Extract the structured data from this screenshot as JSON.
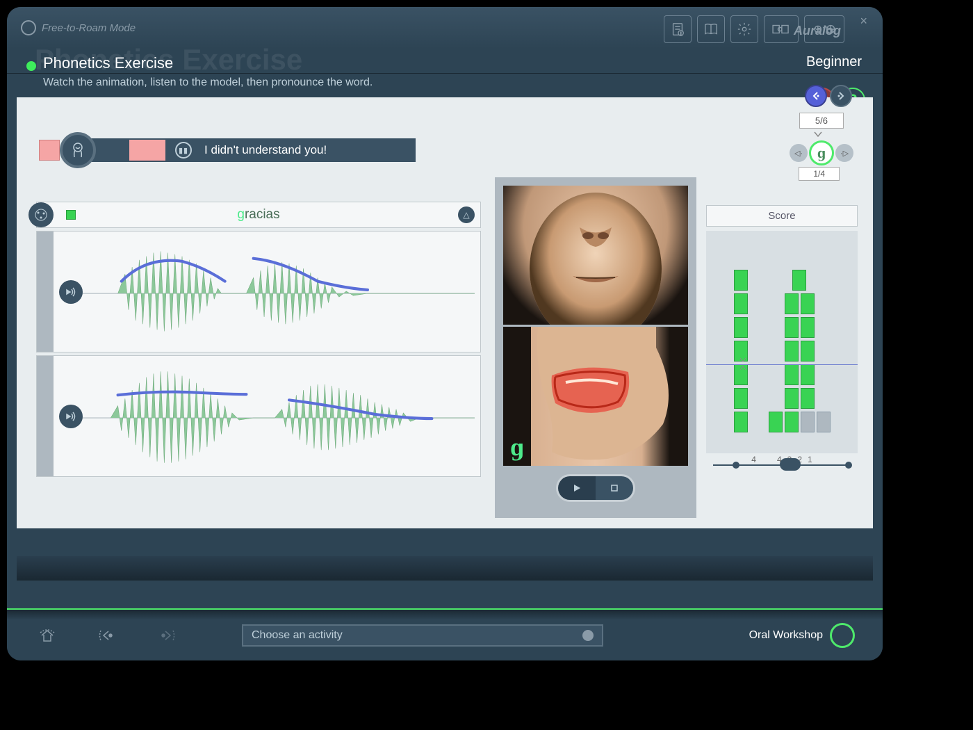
{
  "header": {
    "mode": "Free-to-Roam Mode",
    "brand": "Auralog"
  },
  "title": {
    "ghost": "Phonetics Exercise",
    "main": "Phonetics Exercise",
    "level": "Beginner",
    "instruction": "Watch the animation, listen to the model, then pronounce the word."
  },
  "nav": {
    "page_counter": "5/6",
    "sub_letter": "ɡ",
    "sub_counter": "1/4"
  },
  "feedback": {
    "text": "I didn't understand you!"
  },
  "word": {
    "highlight": "g",
    "rest": "racias",
    "full": "gracias"
  },
  "waveforms": {
    "model": {
      "fill": "#8cc89a",
      "pitch": "#5a6ed8",
      "axis": "#aeb8c0"
    },
    "user": {
      "fill": "#8cc89a",
      "pitch": "#5a6ed8",
      "axis": "#aeb8c0"
    }
  },
  "animation": {
    "phoneme": "ɡ"
  },
  "score": {
    "label": "Score",
    "left_col": {
      "bars": [
        [
          1
        ],
        [
          1
        ],
        [
          1
        ],
        [
          1
        ],
        [
          1
        ],
        [
          1
        ],
        [
          1
        ]
      ],
      "labels": [
        "4"
      ]
    },
    "right_col": {
      "bars": [
        [
          1
        ],
        [
          1,
          1
        ],
        [
          1,
          1
        ],
        [
          1,
          1
        ],
        [
          1,
          1
        ],
        [
          1,
          1
        ],
        [
          1,
          1,
          0,
          0
        ]
      ],
      "labels": [
        "4",
        "3",
        "2",
        "1"
      ]
    },
    "colors": {
      "green": "#39d353",
      "gray": "#aeb8c0"
    }
  },
  "bottom": {
    "activity_placeholder": "Choose an activity",
    "workshop": "Oral Workshop"
  }
}
